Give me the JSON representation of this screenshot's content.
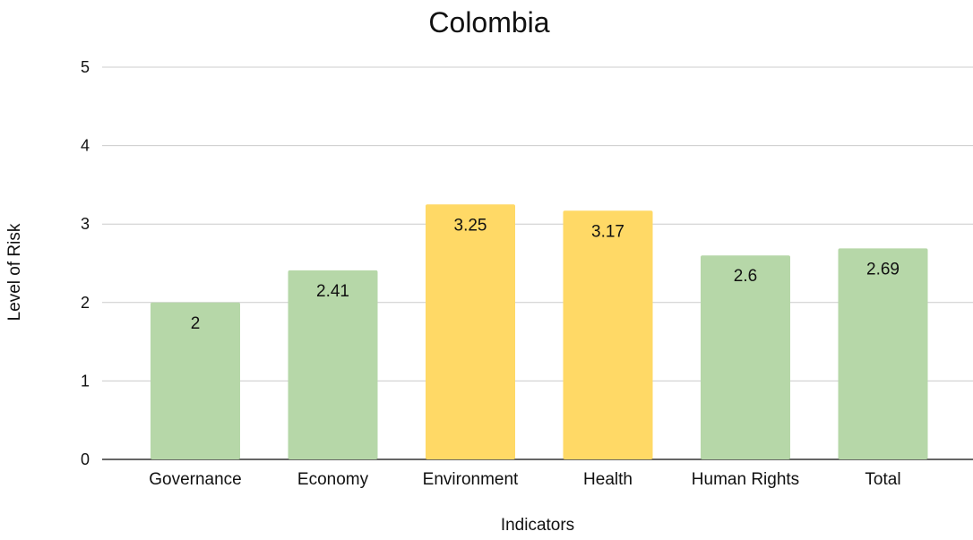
{
  "chart_data": {
    "type": "bar",
    "title": "Colombia",
    "xlabel": "Indicators",
    "ylabel": "Level of Risk",
    "categories": [
      "Governance",
      "Economy",
      "Environment",
      "Health",
      "Human Rights",
      "Total"
    ],
    "values": [
      2,
      2.41,
      3.25,
      3.17,
      2.6,
      2.69
    ],
    "data_labels": [
      "2",
      "2.41",
      "3.25",
      "3.17",
      "2.6",
      "2.69"
    ],
    "bar_colors": [
      "#b6d7a8",
      "#b6d7a8",
      "#ffd966",
      "#ffd966",
      "#b6d7a8",
      "#b6d7a8"
    ],
    "ylim": [
      0,
      5
    ],
    "yticks": [
      0,
      1,
      2,
      3,
      4,
      5
    ],
    "grid": true,
    "legend": "none"
  }
}
